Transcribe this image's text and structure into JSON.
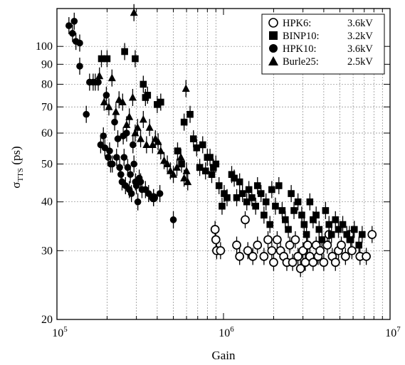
{
  "chart_data": {
    "type": "scatter",
    "title": "",
    "xlabel": "Gain",
    "ylabel": "σ",
    "ylabel_sub": "TTS",
    "ylabel_unit": " (ps)",
    "xscale": "log",
    "yscale": "log",
    "xlim": [
      100000,
      10000000
    ],
    "ylim": [
      20,
      125
    ],
    "grid": true,
    "legend_position": "top-right",
    "x_tick_labels": [
      {
        "value": 100000,
        "base": "10",
        "exp": "5"
      },
      {
        "value": 1000000,
        "base": "10",
        "exp": "6"
      },
      {
        "value": 10000000,
        "base": "10",
        "exp": "7"
      }
    ],
    "y_tick_labels": [
      {
        "value": 20,
        "label": "20"
      },
      {
        "value": 30,
        "label": "30"
      },
      {
        "value": 40,
        "label": "40"
      },
      {
        "value": 50,
        "label": "50"
      },
      {
        "value": 60,
        "label": "60"
      },
      {
        "value": 70,
        "label": "70"
      },
      {
        "value": 80,
        "label": "80"
      },
      {
        "value": 90,
        "label": "90"
      },
      {
        "value": 100,
        "label": "100"
      }
    ],
    "series": [
      {
        "name": "HPK6:",
        "hv": "3.6kV",
        "marker": "open-circle",
        "points": [
          [
            380000,
            41
          ],
          [
            890000,
            34
          ],
          [
            900000,
            32
          ],
          [
            910000,
            30
          ],
          [
            960000,
            30
          ],
          [
            1200000,
            31
          ],
          [
            1250000,
            29
          ],
          [
            1350000,
            36
          ],
          [
            1400000,
            30
          ],
          [
            1500000,
            29
          ],
          [
            1600000,
            31
          ],
          [
            1750000,
            29
          ],
          [
            1850000,
            32
          ],
          [
            1950000,
            30
          ],
          [
            2000000,
            28
          ],
          [
            2100000,
            32
          ],
          [
            2200000,
            30
          ],
          [
            2300000,
            29
          ],
          [
            2400000,
            28
          ],
          [
            2500000,
            31
          ],
          [
            2600000,
            28
          ],
          [
            2700000,
            32
          ],
          [
            2800000,
            29
          ],
          [
            2900000,
            27
          ],
          [
            3000000,
            30
          ],
          [
            3100000,
            28
          ],
          [
            3200000,
            31
          ],
          [
            3300000,
            29
          ],
          [
            3450000,
            28
          ],
          [
            3600000,
            31
          ],
          [
            3700000,
            29
          ],
          [
            3800000,
            30
          ],
          [
            4000000,
            28
          ],
          [
            4200000,
            31
          ],
          [
            4300000,
            33
          ],
          [
            4500000,
            29
          ],
          [
            4700000,
            28
          ],
          [
            4900000,
            30
          ],
          [
            5100000,
            31
          ],
          [
            5400000,
            29
          ],
          [
            5700000,
            33
          ],
          [
            5900000,
            30
          ],
          [
            6600000,
            29
          ],
          [
            7200000,
            29
          ],
          [
            7800000,
            33
          ]
        ]
      },
      {
        "name": "BINP10:",
        "hv": "3.2kV",
        "marker": "filled-square",
        "points": [
          [
            185000,
            93
          ],
          [
            200000,
            93
          ],
          [
            255000,
            97
          ],
          [
            295000,
            93
          ],
          [
            330000,
            80
          ],
          [
            340000,
            74
          ],
          [
            350000,
            75
          ],
          [
            400000,
            71
          ],
          [
            420000,
            72
          ],
          [
            530000,
            54
          ],
          [
            560000,
            50
          ],
          [
            580000,
            64
          ],
          [
            630000,
            67
          ],
          [
            660000,
            58
          ],
          [
            690000,
            55
          ],
          [
            720000,
            49
          ],
          [
            750000,
            56
          ],
          [
            780000,
            48
          ],
          [
            800000,
            52
          ],
          [
            830000,
            52
          ],
          [
            850000,
            47
          ],
          [
            870000,
            49
          ],
          [
            900000,
            50
          ],
          [
            940000,
            44
          ],
          [
            980000,
            39
          ],
          [
            1010000,
            42
          ],
          [
            1050000,
            41
          ],
          [
            1120000,
            47
          ],
          [
            1160000,
            46
          ],
          [
            1200000,
            41
          ],
          [
            1250000,
            45
          ],
          [
            1300000,
            42
          ],
          [
            1380000,
            40
          ],
          [
            1420000,
            43
          ],
          [
            1480000,
            41
          ],
          [
            1560000,
            39
          ],
          [
            1600000,
            44
          ],
          [
            1680000,
            42
          ],
          [
            1750000,
            37
          ],
          [
            1800000,
            40
          ],
          [
            1900000,
            35
          ],
          [
            1950000,
            43
          ],
          [
            2050000,
            39
          ],
          [
            2150000,
            44
          ],
          [
            2250000,
            38
          ],
          [
            2350000,
            36
          ],
          [
            2450000,
            34
          ],
          [
            2550000,
            42
          ],
          [
            2650000,
            38
          ],
          [
            2800000,
            40
          ],
          [
            2950000,
            37
          ],
          [
            3050000,
            35
          ],
          [
            3150000,
            33
          ],
          [
            3300000,
            40
          ],
          [
            3450000,
            36
          ],
          [
            3600000,
            37
          ],
          [
            3750000,
            34
          ],
          [
            3900000,
            32
          ],
          [
            4100000,
            38
          ],
          [
            4300000,
            35
          ],
          [
            4450000,
            33
          ],
          [
            4700000,
            36
          ],
          [
            4900000,
            34
          ],
          [
            5200000,
            35
          ],
          [
            5500000,
            33
          ],
          [
            5800000,
            32
          ],
          [
            6100000,
            34
          ],
          [
            6500000,
            31
          ],
          [
            6800000,
            33
          ]
        ]
      },
      {
        "name": "HPK10:",
        "hv": "3.6kV",
        "marker": "filled-circle",
        "points": [
          [
            118000,
            113
          ],
          [
            124000,
            108
          ],
          [
            127000,
            116
          ],
          [
            130000,
            103
          ],
          [
            137000,
            102
          ],
          [
            137000,
            89
          ],
          [
            150000,
            67
          ],
          [
            157000,
            81
          ],
          [
            165000,
            81
          ],
          [
            177000,
            81
          ],
          [
            183000,
            56
          ],
          [
            190000,
            59
          ],
          [
            194000,
            55
          ],
          [
            198000,
            75
          ],
          [
            203000,
            52
          ],
          [
            207000,
            54
          ],
          [
            210000,
            50
          ],
          [
            215000,
            50
          ],
          [
            222000,
            64
          ],
          [
            228000,
            52
          ],
          [
            232000,
            58
          ],
          [
            238000,
            49
          ],
          [
            242000,
            47
          ],
          [
            246000,
            45
          ],
          [
            250000,
            59
          ],
          [
            253000,
            52
          ],
          [
            258000,
            44
          ],
          [
            262000,
            60
          ],
          [
            266000,
            49
          ],
          [
            272000,
            43
          ],
          [
            276000,
            47
          ],
          [
            280000,
            42
          ],
          [
            286000,
            56
          ],
          [
            290000,
            50
          ],
          [
            296000,
            45
          ],
          [
            300000,
            44
          ],
          [
            306000,
            40
          ],
          [
            312000,
            46
          ],
          [
            318000,
            45
          ],
          [
            324000,
            43
          ],
          [
            340000,
            43
          ],
          [
            355000,
            42
          ],
          [
            380000,
            41
          ],
          [
            415000,
            42
          ],
          [
            500000,
            36
          ]
        ]
      },
      {
        "name": "Burle25:",
        "hv": "2.5kV",
        "marker": "filled-triangle",
        "points": [
          [
            170000,
            81
          ],
          [
            180000,
            84
          ],
          [
            192000,
            72
          ],
          [
            205000,
            70
          ],
          [
            214000,
            83
          ],
          [
            226000,
            68
          ],
          [
            236000,
            73
          ],
          [
            248000,
            72
          ],
          [
            262000,
            63
          ],
          [
            272000,
            66
          ],
          [
            285000,
            74
          ],
          [
            295000,
            60
          ],
          [
            305000,
            62
          ],
          [
            318000,
            58
          ],
          [
            330000,
            65
          ],
          [
            345000,
            56
          ],
          [
            360000,
            62
          ],
          [
            375000,
            56
          ],
          [
            390000,
            58
          ],
          [
            405000,
            57
          ],
          [
            420000,
            54
          ],
          [
            440000,
            51
          ],
          [
            460000,
            50
          ],
          [
            480000,
            48
          ],
          [
            500000,
            47
          ],
          [
            525000,
            49
          ],
          [
            555000,
            52
          ],
          [
            580000,
            46
          ],
          [
            600000,
            48
          ],
          [
            595000,
            78
          ],
          [
            610000,
            45
          ],
          [
            290000,
            122
          ]
        ]
      }
    ]
  }
}
